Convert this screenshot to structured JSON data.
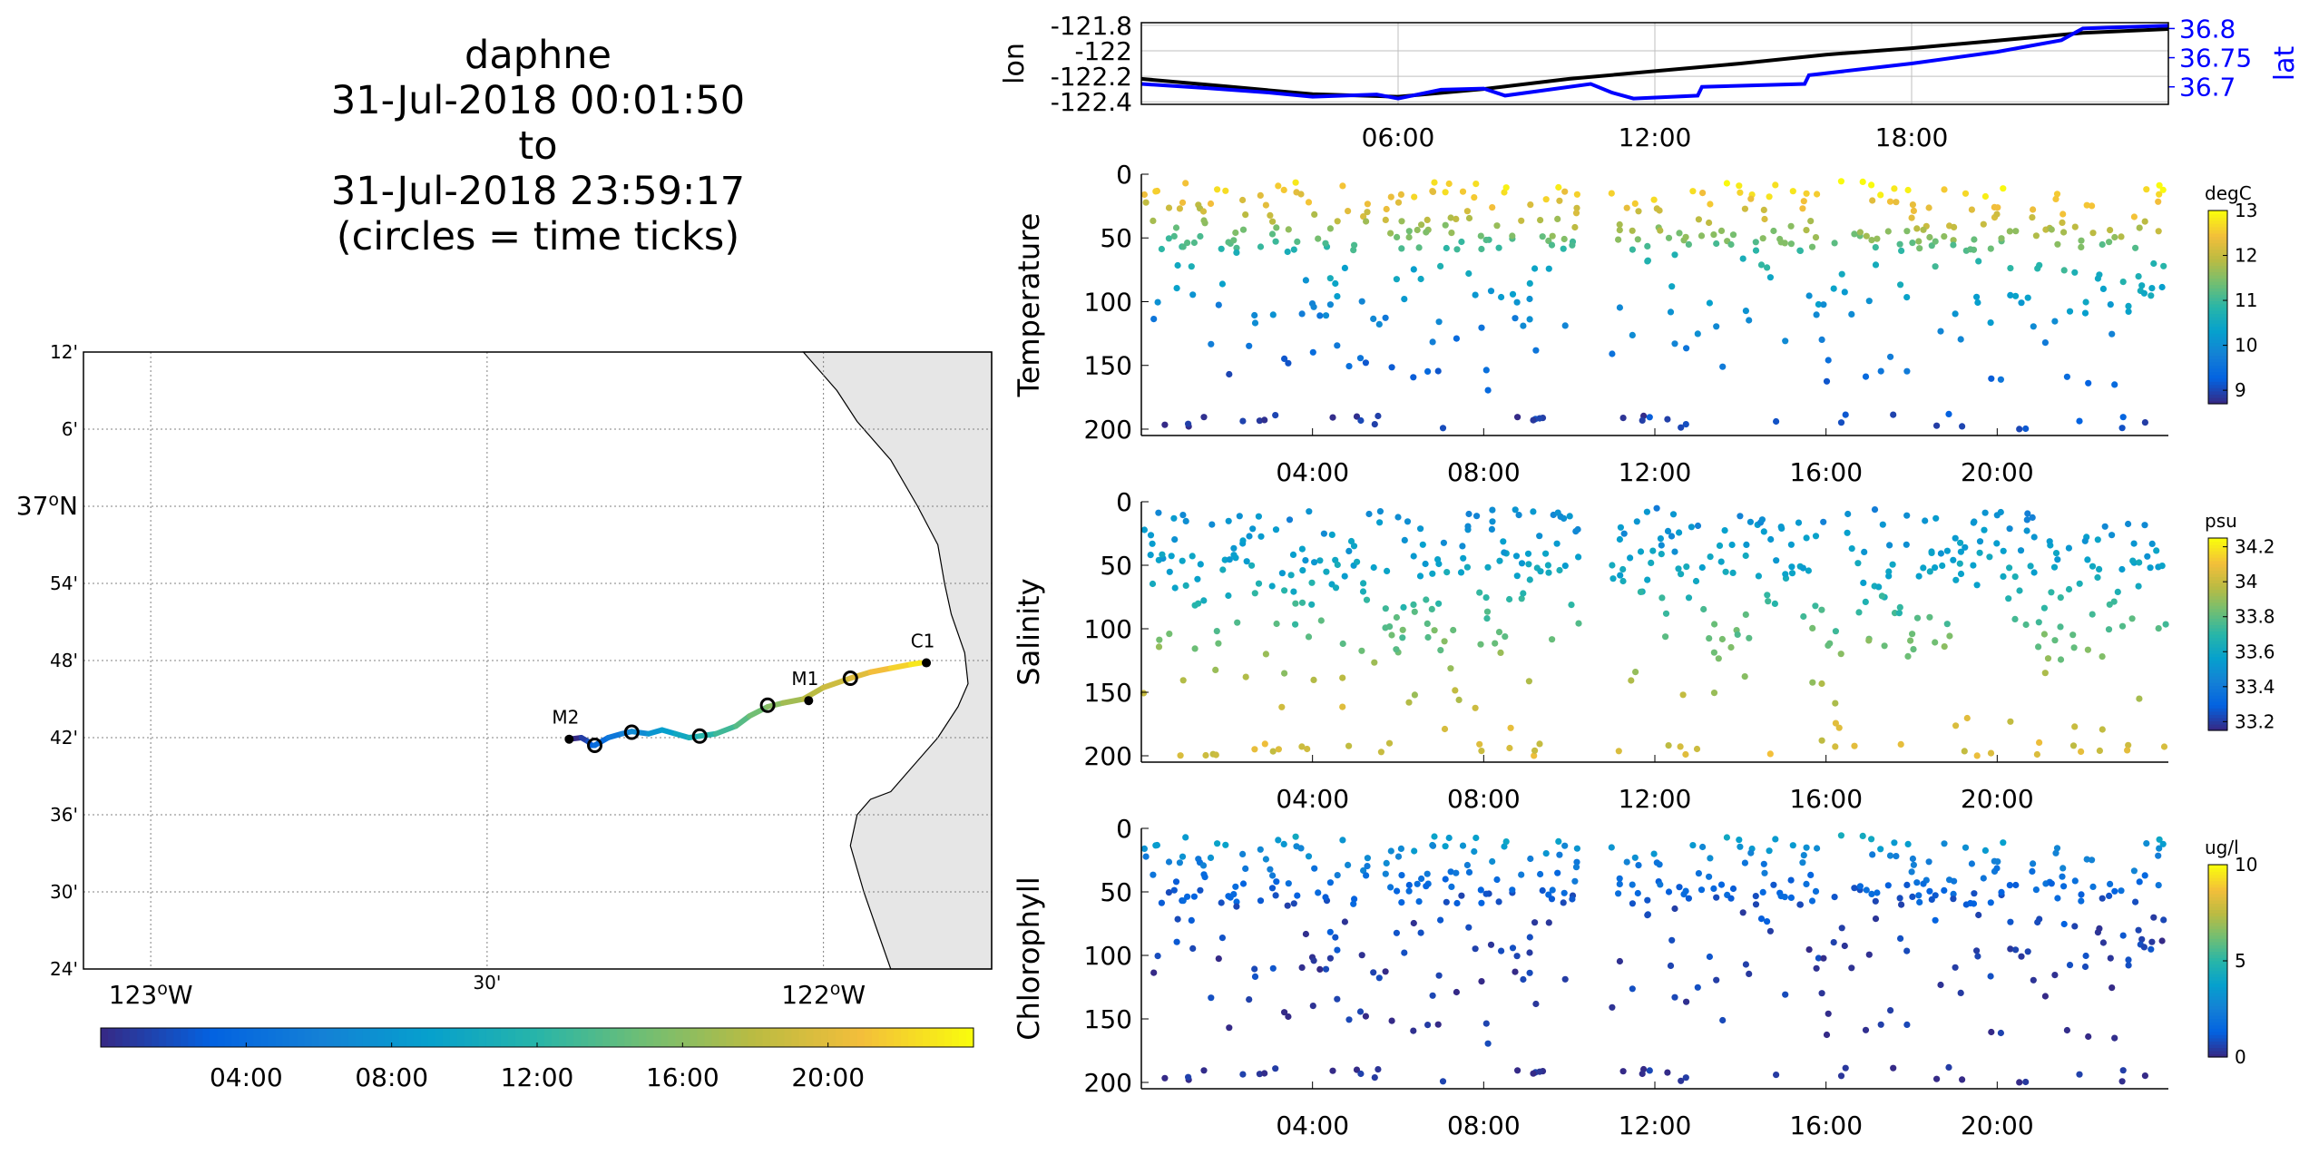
{
  "title": {
    "lines": [
      "daphne",
      "31-Jul-2018 00:01:50",
      "to",
      "31-Jul-2018 23:59:17",
      "(circles = time ticks)"
    ]
  },
  "colors": {
    "lon_line": "#000000",
    "lat_line": "#0000ff",
    "land": "#e6e6e6",
    "axis": "#000000",
    "grid": "#bfbfbf",
    "station": "#000000"
  },
  "chart_data": [
    {
      "id": "map",
      "type": "scatter",
      "title": "",
      "lat_ticks": [
        "12'",
        "6'",
        "37°N",
        "54'",
        "48'",
        "42'",
        "36'",
        "30'",
        "24'"
      ],
      "lat_range": [
        36.4,
        37.2
      ],
      "lon_ticks": [
        "123°W",
        "30'",
        "122°W"
      ],
      "lon_range": [
        -123.1,
        -121.75
      ],
      "stations": [
        {
          "name": "M2",
          "lat": 36.698,
          "lon": -122.378
        },
        {
          "name": "M1",
          "lat": 36.748,
          "lon": -122.022
        },
        {
          "name": "C1",
          "lat": 36.797,
          "lon": -121.847
        }
      ],
      "time_tick_circles": [
        {
          "lat": 36.69,
          "lon": -122.34,
          "time": "04:00"
        },
        {
          "lat": 36.707,
          "lon": -122.285,
          "time": "08:00"
        },
        {
          "lat": 36.702,
          "lon": -122.184,
          "time": "12:00"
        },
        {
          "lat": 36.742,
          "lon": -122.083,
          "time": "16:00"
        },
        {
          "lat": 36.777,
          "lon": -121.96,
          "time": "20:00"
        }
      ],
      "track": {
        "time_hours": [
          0,
          1,
          2,
          3,
          4,
          5,
          6,
          7,
          8,
          9,
          10,
          11,
          12,
          13,
          14,
          15,
          16,
          17,
          18,
          19,
          20,
          21,
          22,
          23,
          24
        ],
        "lat": [
          36.698,
          36.7,
          36.695,
          36.69,
          36.69,
          36.7,
          36.705,
          36.708,
          36.705,
          36.71,
          36.705,
          36.7,
          36.702,
          36.705,
          36.715,
          36.728,
          36.74,
          36.745,
          36.75,
          36.765,
          36.777,
          36.785,
          36.79,
          36.795,
          36.797
        ],
        "lon": [
          -122.378,
          -122.36,
          -122.35,
          -122.345,
          -122.34,
          -122.32,
          -122.3,
          -122.285,
          -122.26,
          -122.24,
          -122.22,
          -122.2,
          -122.184,
          -122.16,
          -122.13,
          -122.11,
          -122.083,
          -122.06,
          -122.03,
          -122.0,
          -121.96,
          -121.93,
          -121.9,
          -121.87,
          -121.855
        ]
      },
      "colorbar": {
        "ticks": [
          "04:00",
          "08:00",
          "12:00",
          "16:00",
          "20:00"
        ],
        "range_hours": [
          0,
          24
        ],
        "colormap": "parula"
      }
    },
    {
      "id": "lonlat",
      "type": "line",
      "ylabel_left": "lon",
      "ylabel_right": "lat",
      "left_ticks": [
        "-121.8",
        "-122",
        "-122.2",
        "-122.4"
      ],
      "right_ticks": [
        "36.8",
        "36.75",
        "36.7"
      ],
      "x_ticks": [
        "06:00",
        "12:00",
        "18:00"
      ],
      "xlim_hours": [
        0,
        24
      ],
      "ylim_left": [
        -122.42,
        -121.78
      ],
      "ylim_right": [
        36.67,
        36.81
      ],
      "grid": true,
      "series": [
        {
          "name": "lon",
          "axis": "left",
          "x": [
            0,
            2,
            4,
            6,
            8,
            10,
            12,
            14,
            16,
            18,
            20,
            22,
            24
          ],
          "y": [
            -122.22,
            -122.28,
            -122.34,
            -122.36,
            -122.3,
            -122.22,
            -122.16,
            -122.1,
            -122.03,
            -121.98,
            -121.92,
            -121.86,
            -121.83
          ]
        },
        {
          "name": "lat",
          "axis": "right",
          "x": [
            0,
            1.5,
            3,
            4,
            5.5,
            6,
            7,
            8,
            8.5,
            10.5,
            11,
            11.5,
            13,
            13.1,
            15.5,
            15.6,
            18,
            20,
            21.5,
            22,
            24
          ],
          "y": [
            36.705,
            36.698,
            36.69,
            36.683,
            36.687,
            36.68,
            36.695,
            36.697,
            36.685,
            36.705,
            36.69,
            36.68,
            36.685,
            36.7,
            36.705,
            36.72,
            36.74,
            36.76,
            36.78,
            36.8,
            36.805
          ]
        }
      ]
    },
    {
      "id": "temperature",
      "type": "scatter",
      "ylabel": "Temperature",
      "units": "degC",
      "y_ticks": [
        "0",
        "50",
        "100",
        "150",
        "200"
      ],
      "x_ticks": [
        "04:00",
        "08:00",
        "12:00",
        "16:00",
        "20:00"
      ],
      "xlim_hours": [
        0,
        24
      ],
      "ylim": [
        0,
        205
      ],
      "colorbar": {
        "ticks": [
          "13",
          "12",
          "11",
          "10",
          "9"
        ],
        "range": [
          8.7,
          13
        ]
      },
      "profiles": [
        {
          "depth": 2,
          "value": 13
        },
        {
          "depth": 15,
          "value": 12.6
        },
        {
          "depth": 30,
          "value": 12.2
        },
        {
          "depth": 45,
          "value": 11.6
        },
        {
          "depth": 60,
          "value": 11
        },
        {
          "depth": 80,
          "value": 10.5
        },
        {
          "depth": 100,
          "value": 10.1
        },
        {
          "depth": 130,
          "value": 9.7
        },
        {
          "depth": 160,
          "value": 9.3
        },
        {
          "depth": 195,
          "value": 8.9
        }
      ]
    },
    {
      "id": "salinity",
      "type": "scatter",
      "ylabel": "Salinity",
      "units": "psu",
      "y_ticks": [
        "0",
        "50",
        "100",
        "150",
        "200"
      ],
      "x_ticks": [
        "04:00",
        "08:00",
        "12:00",
        "16:00",
        "20:00"
      ],
      "xlim_hours": [
        0,
        24
      ],
      "ylim": [
        0,
        205
      ],
      "colorbar": {
        "ticks": [
          "34.2",
          "34",
          "33.8",
          "33.6",
          "33.4",
          "33.2"
        ],
        "range": [
          33.15,
          34.25
        ]
      },
      "profiles": [
        {
          "depth": 2,
          "value": 33.45
        },
        {
          "depth": 20,
          "value": 33.5
        },
        {
          "depth": 40,
          "value": 33.55
        },
        {
          "depth": 60,
          "value": 33.6
        },
        {
          "depth": 80,
          "value": 33.7
        },
        {
          "depth": 100,
          "value": 33.8
        },
        {
          "depth": 130,
          "value": 33.9
        },
        {
          "depth": 160,
          "value": 34.0
        },
        {
          "depth": 195,
          "value": 34.05
        }
      ]
    },
    {
      "id": "chlorophyll",
      "type": "scatter",
      "ylabel": "Chlorophyll",
      "units": "ug/l",
      "y_ticks": [
        "0",
        "50",
        "100",
        "150",
        "200"
      ],
      "x_ticks": [
        "04:00",
        "08:00",
        "12:00",
        "16:00",
        "20:00"
      ],
      "xlim_hours": [
        0,
        24
      ],
      "ylim": [
        0,
        205
      ],
      "colorbar": {
        "ticks": [
          "10",
          "5",
          "0"
        ],
        "range": [
          0,
          10
        ]
      },
      "profiles": [
        {
          "depth": 2,
          "value": 4.5
        },
        {
          "depth": 10,
          "value": 3.5
        },
        {
          "depth": 20,
          "value": 2.8
        },
        {
          "depth": 35,
          "value": 2.0
        },
        {
          "depth": 50,
          "value": 1.2
        },
        {
          "depth": 80,
          "value": 0.6
        },
        {
          "depth": 120,
          "value": 0.3
        },
        {
          "depth": 190,
          "value": 0.1
        }
      ]
    }
  ]
}
